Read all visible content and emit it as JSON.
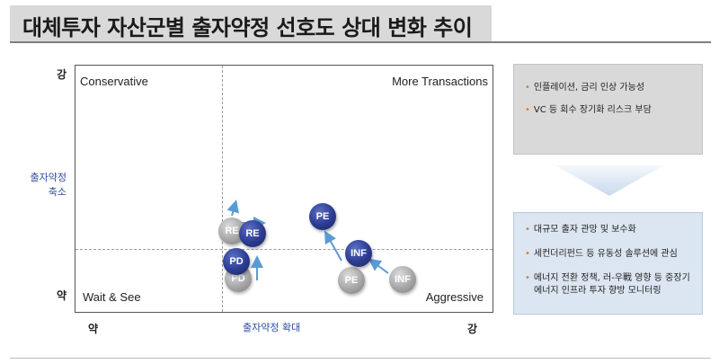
{
  "title": "대체투자 자산군별 출자약정 선호도 상대 변화 추이",
  "y_axis": {
    "top": "강",
    "bottom": "약",
    "name_line1": "출자약정",
    "name_line2": "축소"
  },
  "x_axis": {
    "left": "약",
    "right": "강",
    "name": "출자약정 확대"
  },
  "quadrants": {
    "top_left": "Conservative",
    "top_right": "More Transactions",
    "bottom_left": "Wait & See",
    "bottom_right": "Aggressive"
  },
  "bubbles": {
    "re_old": "RE",
    "re_new": "RE",
    "pd_old": "PD",
    "pd_new": "PD",
    "pe_old": "PE",
    "pe_new": "PE",
    "inf_old": "INF",
    "inf_new": "INF"
  },
  "colors": {
    "current": "#2b3b8f",
    "previous": "#a6a6a6",
    "arrow": "#5b9bd5",
    "bullet": "#e07b2a"
  },
  "box_previous": {
    "items": [
      "인플레이션, 금리 인상 가능성",
      "VC 등 회수 장기화 리스크 부담"
    ]
  },
  "box_current": {
    "items": [
      "대규모 출자 관망 및 보수화",
      "세컨더리펀드 등 유동성 솔루션에 관심",
      "에너지 전환 정책, 러-우戰 영향 등 중장기",
      "에너지 인프라 투자 향방 모니터링"
    ]
  }
}
